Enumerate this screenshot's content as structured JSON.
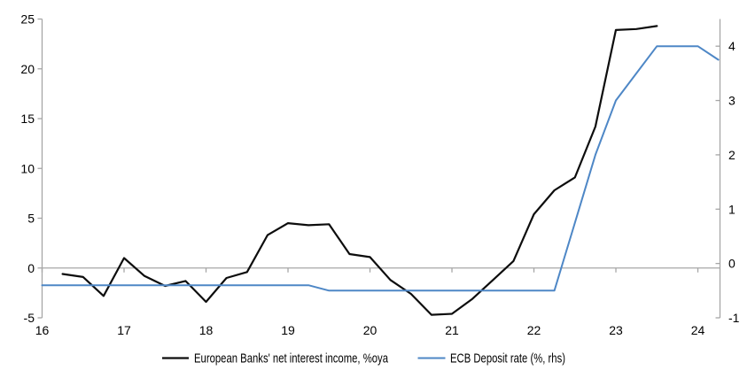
{
  "chart_data": {
    "type": "line",
    "title": "",
    "x_axis": {
      "min": 16,
      "max": 24.27,
      "ticks": [
        "16",
        "17",
        "18",
        "19",
        "20",
        "21",
        "22",
        "23",
        "24"
      ]
    },
    "y_axis_left": {
      "min": -5,
      "max": 25,
      "ticks": [
        "-5",
        "0",
        "5",
        "10",
        "15",
        "20",
        "25"
      ]
    },
    "y_axis_right": {
      "min": -1,
      "max": 4.5,
      "ticks": [
        "-1",
        "0",
        "1",
        "2",
        "3",
        "4"
      ]
    },
    "grid": "zero-line-only",
    "legend_position": "bottom-center",
    "series": [
      {
        "name": "European Banks' net interest income, %oya",
        "axis": "left",
        "color": "#0d0d0d",
        "x": [
          16.25,
          16.5,
          16.75,
          17,
          17.25,
          17.5,
          17.75,
          18,
          18.25,
          18.5,
          18.75,
          19,
          19.25,
          19.5,
          19.75,
          20,
          20.25,
          20.5,
          20.75,
          21,
          21.25,
          21.5,
          21.75,
          22,
          22.25,
          22.5,
          22.75,
          23,
          23.25,
          23.5
        ],
        "values": [
          -0.6,
          -0.9,
          -2.8,
          1.0,
          -0.8,
          -1.8,
          -1.3,
          -3.4,
          -1.0,
          -0.4,
          3.3,
          4.5,
          4.3,
          4.4,
          1.4,
          1.1,
          -1.2,
          -2.6,
          -4.7,
          -4.6,
          -3.1,
          -1.2,
          0.7,
          5.4,
          7.8,
          9.1,
          14.2,
          23.9,
          24.0,
          24.3
        ]
      },
      {
        "name": "ECB Deposit rate (%, rhs)",
        "axis": "right",
        "color": "#4e87c6",
        "x": [
          16,
          16.25,
          16.5,
          16.75,
          17,
          17.25,
          17.5,
          17.75,
          18,
          18.25,
          18.5,
          18.75,
          19,
          19.25,
          19.5,
          19.75,
          20,
          20.25,
          20.5,
          20.75,
          21,
          21.25,
          21.5,
          21.75,
          22,
          22.25,
          22.5,
          22.75,
          23,
          23.25,
          23.5,
          23.75,
          24,
          24.25
        ],
        "values": [
          -0.4,
          -0.4,
          -0.4,
          -0.4,
          -0.4,
          -0.4,
          -0.4,
          -0.4,
          -0.4,
          -0.4,
          -0.4,
          -0.4,
          -0.4,
          -0.4,
          -0.5,
          -0.5,
          -0.5,
          -0.5,
          -0.5,
          -0.5,
          -0.5,
          -0.5,
          -0.5,
          -0.5,
          -0.5,
          -0.5,
          0.75,
          2.0,
          3.0,
          3.5,
          4.0,
          4.0,
          4.0,
          3.75
        ]
      }
    ]
  },
  "colors": {
    "background": "#ffffff",
    "axis_line": "#a6a6a6",
    "zero_line": "#a6a6a6",
    "tick_text": "#000000",
    "series_black": "#0d0d0d",
    "series_blue": "#4e87c6"
  }
}
